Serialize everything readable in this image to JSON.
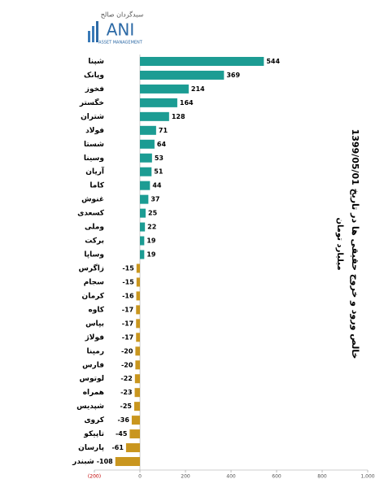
{
  "logo": {
    "brand": "ANI",
    "tagline": "ASSET MANAGEMENT",
    "persian": "سبدگردان صالح"
  },
  "chart_data": {
    "type": "hbar",
    "title": "خالص ورود و خروج حقیقی ها در تاریخ 1399/05/01",
    "subtitle": "میلیارد تومان",
    "categories": [
      "شپنا",
      "وپانک",
      "فخوز",
      "خگستر",
      "شتران",
      "فولاد",
      "شستا",
      "وسینا",
      "آریان",
      "کاما",
      "غنوش",
      "کسعدی",
      "وملی",
      "برکت",
      "وساپا",
      "زاگرس",
      "سجام",
      "کرمان",
      "کاوه",
      "بپاس",
      "فولاژ",
      "رمپنا",
      "فارس",
      "لوتوس",
      "همراه",
      "شپدیس",
      "کروی",
      "تاپیکو",
      "پارسان",
      "شبندر"
    ],
    "values": [
      544,
      369,
      214,
      164,
      128,
      71,
      64,
      53,
      51,
      44,
      37,
      25,
      22,
      19,
      19,
      -15,
      -15,
      -16,
      -17,
      -17,
      -17,
      -20,
      -20,
      -22,
      -23,
      -25,
      -36,
      -45,
      -61,
      -108
    ],
    "color": "#1c9c93",
    "negative_color": "#c9961f",
    "xlim": [
      -200,
      1000
    ],
    "xticks": [
      {
        "value": -200,
        "label": "(200)"
      },
      0,
      200,
      400,
      600,
      800,
      {
        "value": 1000,
        "label": "1,000"
      }
    ]
  }
}
